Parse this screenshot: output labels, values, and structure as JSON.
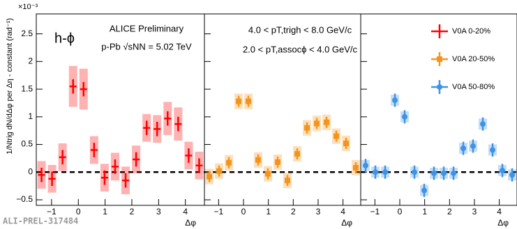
{
  "watermark": "ALI-PREL-317484",
  "chart_data": [
    {
      "type": "scatter",
      "y_label": "1/Ntrig dN/dΔφ per Δη - constant (rad⁻¹)",
      "y_exponent": "×10⁻³",
      "x_label": "Δφ",
      "annotations": [
        "h-ϕ",
        "ALICE Preliminary",
        "p-Pb √sNN = 5.02 TeV"
      ],
      "x": [
        -1.374,
        -0.982,
        -0.589,
        -0.196,
        0.196,
        0.589,
        0.982,
        1.374,
        1.767,
        2.16,
        2.553,
        2.945,
        3.338,
        3.731,
        4.123,
        4.516
      ],
      "xlim": [
        -1.571,
        4.712
      ],
      "xticks": [
        {
          "value": -1,
          "label": "−1"
        },
        0,
        1,
        2,
        3,
        4
      ],
      "ylim": [
        -0.6,
        2.86
      ],
      "yticks": [
        {
          "value": -0.5,
          "label": "−0.5"
        },
        0,
        0.5,
        1,
        1.5,
        2,
        2.5
      ],
      "hline": 0,
      "series": [
        {
          "name": "V0A 0-20%",
          "color": "#ff0000",
          "marker": "cross",
          "values": [
            -0.05,
            -0.12,
            0.27,
            1.55,
            1.5,
            0.4,
            -0.1,
            0.1,
            -0.15,
            0.23,
            0.8,
            0.78,
            0.97,
            0.87,
            0.3,
            0.12
          ],
          "errors": [
            0.13,
            0.13,
            0.13,
            0.13,
            0.13,
            0.13,
            0.13,
            0.13,
            0.13,
            0.13,
            0.13,
            0.13,
            0.13,
            0.13,
            0.13,
            0.13
          ],
          "sys_errors": [
            0.25,
            0.25,
            0.25,
            0.37,
            0.37,
            0.25,
            0.25,
            0.25,
            0.25,
            0.25,
            0.25,
            0.25,
            0.3,
            0.3,
            0.25,
            0.25
          ]
        }
      ]
    },
    {
      "type": "scatter",
      "x_label": "Δφ",
      "annotations": [
        "4.0 < pT,trigh < 8.0 GeV/c",
        "2.0 < pT,assocϕ < 4.0 GeV/c"
      ],
      "x": [
        -1.374,
        -0.982,
        -0.589,
        -0.196,
        0.196,
        0.589,
        0.982,
        1.374,
        1.767,
        2.16,
        2.553,
        2.945,
        3.338,
        3.731,
        4.123,
        4.516
      ],
      "xlim": [
        -1.571,
        4.712
      ],
      "xticks": [
        {
          "value": -1,
          "label": "−1"
        },
        0,
        1,
        2,
        3,
        4
      ],
      "ylim": [
        -0.6,
        2.86
      ],
      "yticks": [
        -0.5,
        0,
        0.5,
        1,
        1.5,
        2,
        2.5
      ],
      "hline": 0,
      "series": [
        {
          "name": "V0A 20-50%",
          "color": "#f5941d",
          "marker": "square",
          "values": [
            -0.08,
            0.02,
            0.17,
            1.28,
            1.28,
            0.22,
            -0.03,
            0.18,
            -0.15,
            0.33,
            0.8,
            0.88,
            0.9,
            0.65,
            0.52,
            0.08
          ],
          "errors": [
            0.1,
            0.1,
            0.1,
            0.1,
            0.1,
            0.1,
            0.1,
            0.1,
            0.1,
            0.1,
            0.1,
            0.1,
            0.1,
            0.1,
            0.1,
            0.1
          ],
          "sys_errors": [
            0.14,
            0.14,
            0.14,
            0.14,
            0.14,
            0.14,
            0.14,
            0.14,
            0.14,
            0.14,
            0.14,
            0.14,
            0.14,
            0.14,
            0.14,
            0.14
          ]
        }
      ]
    },
    {
      "type": "scatter",
      "x_label": "Δφ",
      "x": [
        -1.374,
        -0.982,
        -0.589,
        -0.196,
        0.196,
        0.589,
        0.982,
        1.374,
        1.767,
        2.16,
        2.553,
        2.945,
        3.338,
        3.731,
        4.123,
        4.516
      ],
      "xlim": [
        -1.571,
        4.712
      ],
      "xticks": [
        {
          "value": -1,
          "label": "−1"
        },
        0,
        1,
        2,
        3,
        4
      ],
      "ylim": [
        -0.6,
        2.86
      ],
      "yticks": [
        -0.5,
        0,
        0.5,
        1,
        1.5,
        2,
        2.5
      ],
      "hline": 0,
      "series": [
        {
          "name": "V0A 50-80%",
          "color": "#3f93e6",
          "marker": "circle",
          "values": [
            0.12,
            0.0,
            0.0,
            1.3,
            1.0,
            0.0,
            -0.33,
            -0.02,
            -0.02,
            -0.02,
            0.43,
            0.47,
            0.87,
            0.4,
            0.03,
            -0.05
          ],
          "errors": [
            0.12,
            0.12,
            0.12,
            0.12,
            0.12,
            0.12,
            0.12,
            0.12,
            0.12,
            0.12,
            0.12,
            0.12,
            0.12,
            0.12,
            0.12,
            0.12
          ],
          "sys_errors": [
            0.1,
            0.1,
            0.1,
            0.1,
            0.1,
            0.1,
            0.1,
            0.1,
            0.1,
            0.1,
            0.1,
            0.1,
            0.1,
            0.1,
            0.1,
            0.1
          ]
        }
      ]
    }
  ]
}
